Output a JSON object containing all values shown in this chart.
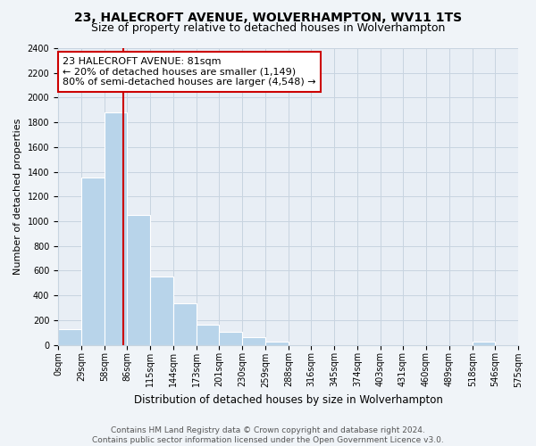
{
  "title": "23, HALECROFT AVENUE, WOLVERHAMPTON, WV11 1TS",
  "subtitle": "Size of property relative to detached houses in Wolverhampton",
  "xlabel": "Distribution of detached houses by size in Wolverhampton",
  "ylabel": "Number of detached properties",
  "bar_values": [
    125,
    1350,
    1880,
    1050,
    550,
    335,
    160,
    105,
    58,
    28,
    0,
    0,
    0,
    0,
    0,
    0,
    0,
    0,
    22,
    0
  ],
  "bin_edges": [
    0,
    29,
    58,
    86,
    115,
    144,
    173,
    201,
    230,
    259,
    288,
    316,
    345,
    374,
    403,
    431,
    460,
    489,
    518,
    546,
    575
  ],
  "tick_labels": [
    "0sqm",
    "29sqm",
    "58sqm",
    "86sqm",
    "115sqm",
    "144sqm",
    "173sqm",
    "201sqm",
    "230sqm",
    "259sqm",
    "288sqm",
    "316sqm",
    "345sqm",
    "374sqm",
    "403sqm",
    "431sqm",
    "460sqm",
    "489sqm",
    "518sqm",
    "546sqm",
    "575sqm"
  ],
  "bar_color": "#b8d4ea",
  "property_line_x": 81,
  "annotation_title": "23 HALECROFT AVENUE: 81sqm",
  "annotation_line1": "← 20% of detached houses are smaller (1,149)",
  "annotation_line2": "80% of semi-detached houses are larger (4,548) →",
  "annotation_box_color": "#ffffff",
  "annotation_box_edge": "#cc0000",
  "red_line_color": "#cc0000",
  "ylim": [
    0,
    2400
  ],
  "yticks": [
    0,
    200,
    400,
    600,
    800,
    1000,
    1200,
    1400,
    1600,
    1800,
    2000,
    2200,
    2400
  ],
  "footer1": "Contains HM Land Registry data © Crown copyright and database right 2024.",
  "footer2": "Contains public sector information licensed under the Open Government Licence v3.0.",
  "background_color": "#f0f4f8",
  "plot_bg_color": "#e8eef5",
  "grid_color": "#c8d4e0",
  "title_fontsize": 10,
  "subtitle_fontsize": 9,
  "xlabel_fontsize": 8.5,
  "ylabel_fontsize": 8,
  "tick_fontsize": 7,
  "annotation_fontsize": 8,
  "footer_fontsize": 6.5
}
